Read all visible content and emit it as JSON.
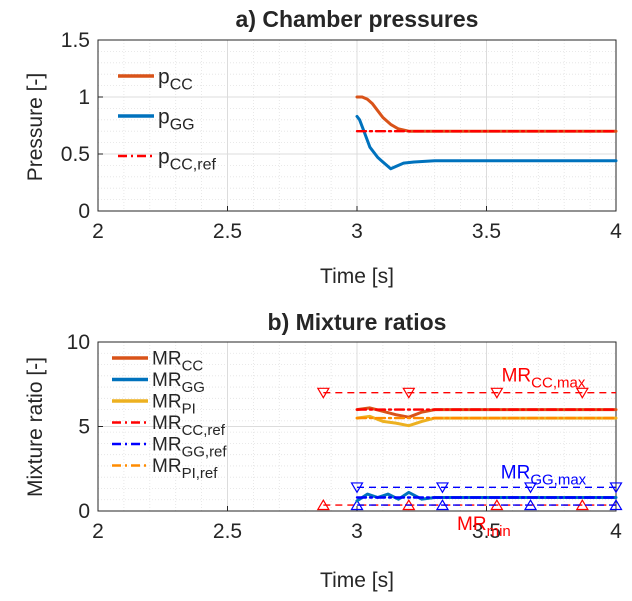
{
  "chart_data": [
    {
      "type": "line",
      "title": "a) Chamber pressures",
      "xlabel": "Time [s]",
      "ylabel": "Pressure [-]",
      "xlim": [
        2,
        4
      ],
      "ylim": [
        0,
        1.5
      ],
      "xticks": [
        "2",
        "2.5",
        "3",
        "3.5",
        "4"
      ],
      "yticks": [
        "0",
        "0.5",
        "1",
        "1.5"
      ],
      "grid": true,
      "legend_position": "top-left",
      "series": [
        {
          "name": "p",
          "sub": "CC",
          "color": "#D95319",
          "style": "solid",
          "x": [
            3.0,
            3.02,
            3.04,
            3.06,
            3.08,
            3.1,
            3.13,
            3.16,
            3.2,
            3.3,
            3.4,
            3.6,
            4.0
          ],
          "y": [
            1.0,
            1.0,
            0.98,
            0.94,
            0.88,
            0.82,
            0.76,
            0.72,
            0.7,
            0.7,
            0.7,
            0.7,
            0.7
          ]
        },
        {
          "name": "p",
          "sub": "GG",
          "color": "#0072BD",
          "style": "solid",
          "x": [
            3.0,
            3.01,
            3.03,
            3.05,
            3.08,
            3.11,
            3.13,
            3.15,
            3.18,
            3.22,
            3.3,
            3.5,
            4.0
          ],
          "y": [
            0.83,
            0.8,
            0.68,
            0.56,
            0.47,
            0.41,
            0.37,
            0.39,
            0.42,
            0.43,
            0.44,
            0.44,
            0.44
          ]
        },
        {
          "name": "p",
          "sub": "CC,ref",
          "color": "#FF0000",
          "style": "dashdot",
          "x": [
            3.0,
            4.0
          ],
          "y": [
            0.7,
            0.7
          ]
        }
      ]
    },
    {
      "type": "line",
      "title": "b) Mixture ratios",
      "xlabel": "Time [s]",
      "ylabel": "Mixture ratio [-]",
      "xlim": [
        2,
        4
      ],
      "ylim": [
        0,
        10
      ],
      "xticks": [
        "2",
        "2.5",
        "3",
        "3.5",
        "4"
      ],
      "yticks": [
        "0",
        "5",
        "10"
      ],
      "grid": true,
      "legend_position": "top-left",
      "series": [
        {
          "name": "MR",
          "sub": "CC",
          "color": "#D95319",
          "style": "solid",
          "x": [
            3.0,
            3.05,
            3.1,
            3.15,
            3.2,
            3.25,
            3.3,
            3.5,
            4.0
          ],
          "y": [
            6.0,
            6.1,
            5.9,
            5.7,
            5.55,
            5.85,
            6.0,
            6.0,
            6.0
          ]
        },
        {
          "name": "MR",
          "sub": "GG",
          "color": "#0072BD",
          "style": "solid",
          "x": [
            3.0,
            3.04,
            3.08,
            3.12,
            3.16,
            3.2,
            3.25,
            3.3,
            4.0
          ],
          "y": [
            0.6,
            1.0,
            0.8,
            1.0,
            0.7,
            1.1,
            0.7,
            0.8,
            0.8
          ]
        },
        {
          "name": "MR",
          "sub": "PI",
          "color": "#EDB120",
          "style": "solid",
          "x": [
            3.0,
            3.05,
            3.1,
            3.15,
            3.2,
            3.25,
            3.3,
            3.5,
            4.0
          ],
          "y": [
            5.5,
            5.6,
            5.3,
            5.2,
            5.05,
            5.3,
            5.5,
            5.5,
            5.5
          ]
        },
        {
          "name": "MR",
          "sub": "CC,ref",
          "color": "#FF0000",
          "style": "dashdot",
          "x": [
            3.0,
            4.0
          ],
          "y": [
            6.0,
            6.0
          ]
        },
        {
          "name": "MR",
          "sub": "GG,ref",
          "color": "#0000FF",
          "style": "dashdot",
          "x": [
            3.0,
            4.0
          ],
          "y": [
            0.8,
            0.8
          ]
        },
        {
          "name": "MR",
          "sub": "PI,ref",
          "color": "#FF8C00",
          "style": "dashdot",
          "x": [
            3.0,
            4.0
          ],
          "y": [
            5.5,
            5.5
          ]
        }
      ],
      "limits": [
        {
          "label": "MR",
          "sub": "CC,max",
          "y": 7.0,
          "x": [
            2.87,
            4.0
          ],
          "color": "#FF0000",
          "marker": "down",
          "marker_x": [
            2.87,
            3.2,
            3.54,
            3.87
          ]
        },
        {
          "label": "MR",
          "sub": "GG,max",
          "y": 1.4,
          "x": [
            3.0,
            4.0
          ],
          "color": "#0000FF",
          "marker": "down",
          "marker_x": [
            3.0,
            3.33,
            3.67,
            4.0
          ]
        },
        {
          "label": "MR",
          "sub": "min",
          "y": 0.35,
          "x": [
            2.87,
            4.0
          ],
          "color": "#FF0000",
          "marker": "up",
          "marker_x": [
            2.87,
            3.2,
            3.54,
            3.87
          ]
        },
        {
          "label": "",
          "sub": "",
          "y": 0.35,
          "x": [
            3.0,
            4.0
          ],
          "color": "#0000FF",
          "marker": "up",
          "marker_x": [
            3.0,
            3.33,
            3.67,
            4.0
          ]
        }
      ]
    }
  ]
}
